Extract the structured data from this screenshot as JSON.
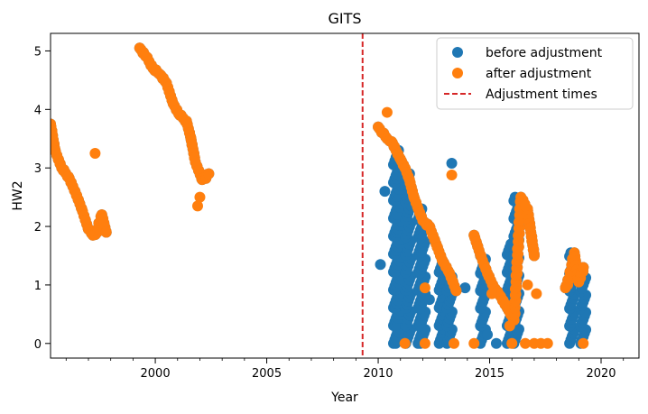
{
  "chart_data": {
    "type": "scatter",
    "title": "GITS",
    "xlabel": "Year",
    "ylabel": "HW2",
    "xlim": [
      1995.3,
      2021.7
    ],
    "ylim": [
      -0.25,
      5.3
    ],
    "xticks": [
      2000,
      2005,
      2010,
      2015,
      2020
    ],
    "yticks": [
      0,
      1,
      2,
      3,
      4,
      5
    ],
    "grid": false,
    "legend_position": "top-right",
    "series": [
      {
        "name": "before adjustment",
        "kind": "points",
        "color": "#1f77b4",
        "marker": "circle",
        "segments": [
          {
            "x": [
              1995.3,
              1995.5,
              1995.8,
              1996.1,
              1996.4,
              1996.7,
              1997.0,
              1997.2,
              1997.4,
              1997.6,
              1997.8
            ],
            "y": [
              3.75,
              3.3,
              3.0,
              2.85,
              2.6,
              2.3,
              1.95,
              1.85,
              1.9,
              2.2,
              1.9
            ]
          },
          {
            "x": [
              1999.3,
              1999.6,
              1999.9,
              2000.2,
              2000.5,
              2000.8,
              2001.1,
              2001.4,
              2001.6,
              2001.8,
              2002.1,
              2002.4
            ],
            "y": [
              5.05,
              4.9,
              4.7,
              4.6,
              4.45,
              4.1,
              3.9,
              3.8,
              3.5,
              3.1,
              2.8,
              2.9
            ]
          },
          {
            "x": [
              2010.0,
              2010.2,
              2010.4,
              2010.6,
              2010.8,
              2011.0,
              2011.2,
              2011.4,
              2011.6,
              2011.8,
              2012.0,
              2012.3,
              2012.6,
              2012.9,
              2013.2,
              2013.5
            ],
            "y": [
              3.7,
              3.6,
              3.5,
              3.45,
              3.3,
              3.15,
              3.0,
              2.8,
              2.5,
              2.3,
              2.1,
              2.0,
              1.7,
              1.4,
              1.2,
              0.9
            ]
          },
          {
            "x": [
              2014.3,
              2014.6,
              2014.9,
              2015.2,
              2015.5,
              2015.8,
              2016.1,
              2016.4,
              2016.7,
              2017.0
            ],
            "y": [
              1.85,
              1.5,
              1.2,
              0.95,
              0.8,
              0.6,
              0.4,
              2.5,
              2.3,
              1.5
            ]
          },
          {
            "x": [
              2018.4,
              2018.6,
              2018.8,
              2019.0,
              2019.2
            ],
            "y": [
              0.95,
              1.15,
              1.55,
              1.05,
              1.3
            ]
          }
        ],
        "columns": [
          {
            "x": 2010.8,
            "y0": 0.0,
            "y1": 3.3
          },
          {
            "x": 2010.9,
            "y0": 0.0,
            "y1": 3.0
          },
          {
            "x": 2011.35,
            "y0": 0.0,
            "y1": 2.9
          },
          {
            "x": 2011.9,
            "y0": 0.0,
            "y1": 2.3
          },
          {
            "x": 2012.0,
            "y0": 0.0,
            "y1": 2.1
          },
          {
            "x": 2012.85,
            "y0": 0.0,
            "y1": 1.4
          },
          {
            "x": 2013.2,
            "y0": 0.0,
            "y1": 1.2
          },
          {
            "x": 2014.7,
            "y0": 0.0,
            "y1": 1.5
          },
          {
            "x": 2015.9,
            "y0": 0.0,
            "y1": 1.7
          },
          {
            "x": 2016.2,
            "y0": 0.0,
            "y1": 2.5
          },
          {
            "x": 2018.7,
            "y0": 0.0,
            "y1": 1.55
          },
          {
            "x": 2019.2,
            "y0": 0.0,
            "y1": 1.3
          }
        ],
        "points": [
          {
            "x": 2010.3,
            "y": 2.6
          },
          {
            "x": 2010.1,
            "y": 1.35
          },
          {
            "x": 2013.3,
            "y": 3.08
          },
          {
            "x": 2012.3,
            "y": 0.75
          },
          {
            "x": 2013.9,
            "y": 0.95
          },
          {
            "x": 2015.3,
            "y": 0.0
          },
          {
            "x": 2014.9,
            "y": 0.15
          },
          {
            "x": 2015.1,
            "y": 0.95
          }
        ]
      },
      {
        "name": "after adjustment",
        "kind": "points",
        "color": "#ff7f0e",
        "marker": "circle",
        "segments": [
          {
            "x": [
              1995.3,
              1995.5,
              1995.8,
              1996.1,
              1996.4,
              1996.7,
              1997.0,
              1997.2,
              1997.4,
              1997.6,
              1997.8
            ],
            "y": [
              3.75,
              3.3,
              3.0,
              2.85,
              2.6,
              2.3,
              1.95,
              1.85,
              1.9,
              2.2,
              1.9
            ]
          },
          {
            "x": [
              1999.3,
              1999.6,
              1999.9,
              2000.2,
              2000.5,
              2000.8,
              2001.1,
              2001.4,
              2001.6,
              2001.8,
              2002.1,
              2002.4
            ],
            "y": [
              5.05,
              4.9,
              4.7,
              4.6,
              4.45,
              4.1,
              3.9,
              3.8,
              3.5,
              3.1,
              2.8,
              2.9
            ]
          },
          {
            "x": [
              2010.0,
              2010.2,
              2010.4,
              2010.6,
              2010.8,
              2011.0,
              2011.2,
              2011.4,
              2011.6,
              2011.8,
              2012.0,
              2012.3,
              2012.6,
              2012.9,
              2013.2,
              2013.5
            ],
            "y": [
              3.7,
              3.6,
              3.5,
              3.45,
              3.3,
              3.15,
              3.0,
              2.8,
              2.5,
              2.3,
              2.1,
              2.0,
              1.7,
              1.4,
              1.2,
              0.9
            ]
          },
          {
            "x": [
              2014.3,
              2014.6,
              2014.9,
              2015.2,
              2015.5,
              2015.8,
              2016.1,
              2016.4,
              2016.7,
              2017.0
            ],
            "y": [
              1.85,
              1.5,
              1.2,
              0.95,
              0.8,
              0.6,
              0.4,
              2.5,
              2.3,
              1.5
            ]
          },
          {
            "x": [
              2018.4,
              2018.6,
              2018.8,
              2019.0,
              2019.2
            ],
            "y": [
              0.95,
              1.15,
              1.55,
              1.05,
              1.3
            ]
          }
        ],
        "columns": [],
        "points": [
          {
            "x": 1997.3,
            "y": 3.25
          },
          {
            "x": 2001.9,
            "y": 2.35
          },
          {
            "x": 2002.0,
            "y": 2.5
          },
          {
            "x": 2010.4,
            "y": 3.95
          },
          {
            "x": 2013.3,
            "y": 2.88
          },
          {
            "x": 2011.2,
            "y": 0.0
          },
          {
            "x": 2012.1,
            "y": 0.0
          },
          {
            "x": 2013.4,
            "y": 0.0
          },
          {
            "x": 2014.3,
            "y": 0.0
          },
          {
            "x": 2016.0,
            "y": 0.0
          },
          {
            "x": 2016.6,
            "y": 0.0
          },
          {
            "x": 2017.0,
            "y": 0.0
          },
          {
            "x": 2017.3,
            "y": 0.0
          },
          {
            "x": 2017.6,
            "y": 0.0
          },
          {
            "x": 2019.2,
            "y": 0.0
          },
          {
            "x": 2017.1,
            "y": 0.85
          },
          {
            "x": 2015.9,
            "y": 0.3
          },
          {
            "x": 2015.1,
            "y": 0.85
          },
          {
            "x": 2016.7,
            "y": 1.0
          },
          {
            "x": 2016.6,
            "y": 2.35
          },
          {
            "x": 2012.1,
            "y": 0.95
          }
        ]
      },
      {
        "name": "Adjustment times",
        "kind": "vline",
        "color": "#d62728",
        "style": "dashed",
        "x": [
          2009.3
        ]
      }
    ]
  }
}
